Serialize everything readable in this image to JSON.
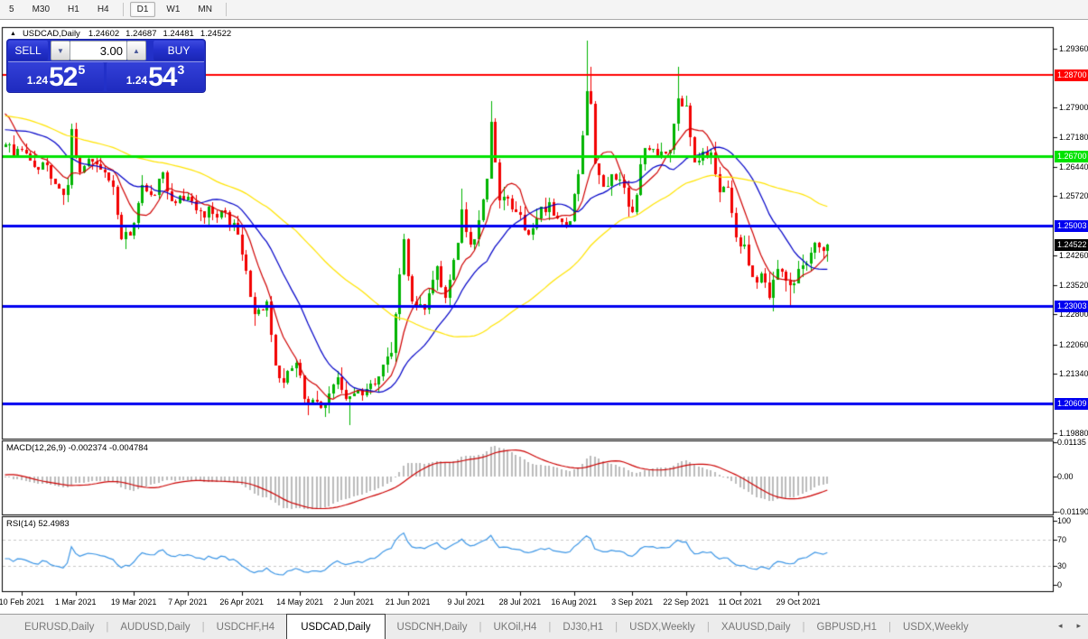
{
  "toolbar": {
    "timeframes": [
      "5",
      "M30",
      "H1",
      "H4",
      "D1",
      "W1",
      "MN"
    ],
    "active": "D1",
    "separators_after": [
      "H4",
      "MN"
    ]
  },
  "header": {
    "collapse_arrow": "▲",
    "title": "USDCAD,Daily",
    "open": "1.24602",
    "high": "1.24687",
    "low": "1.24481",
    "close": "1.24522"
  },
  "trade_panel": {
    "sell_label": "SELL",
    "buy_label": "BUY",
    "volume": "3.00",
    "down_arrow": "▼",
    "up_arrow": "▲",
    "sell_price_prefix": "1.24",
    "sell_price_big": "52",
    "sell_price_sup": "5",
    "buy_price_prefix": "1.24",
    "buy_price_big": "54",
    "buy_price_sup": "3"
  },
  "chart_data": {
    "type": "candlestick",
    "symbol": "USDCAD",
    "timeframe": "Daily",
    "ylim": [
      1.1974,
      1.29888
    ],
    "y_ticks": [
      1.2936,
      1.279,
      1.2718,
      1.2644,
      1.2572,
      1.2426,
      1.2352,
      1.228,
      1.2206,
      1.2134,
      1.1988
    ],
    "levels": [
      {
        "price": 1.287,
        "label": "1.28700",
        "color": "#ff0000",
        "thickness": 2
      },
      {
        "price": 1.267,
        "label": "1.26700",
        "color": "#00e300",
        "thickness": 3
      },
      {
        "price": 1.25003,
        "label": "1.25003",
        "color": "#0000f0",
        "thickness": 3
      },
      {
        "price": 1.23003,
        "label": "1.23003",
        "color": "#0000f0",
        "thickness": 3
      },
      {
        "price": 1.20609,
        "label": "1.20609",
        "color": "#0000f0",
        "thickness": 3
      }
    ],
    "current_price": {
      "value": 1.24522,
      "label": "1.24522",
      "bg": "#000000"
    },
    "x_ticks": [
      {
        "i": 4,
        "label": "10 Feb 2021"
      },
      {
        "i": 17,
        "label": "1 Mar 2021"
      },
      {
        "i": 31,
        "label": "19 Mar 2021"
      },
      {
        "i": 44,
        "label": "7 Apr 2021"
      },
      {
        "i": 57,
        "label": "26 Apr 2021"
      },
      {
        "i": 71,
        "label": "14 May 2021"
      },
      {
        "i": 84,
        "label": "2 Jun 2021"
      },
      {
        "i": 97,
        "label": "21 Jun 2021"
      },
      {
        "i": 111,
        "label": "9 Jul 2021"
      },
      {
        "i": 124,
        "label": "28 Jul 2021"
      },
      {
        "i": 137,
        "label": "16 Aug 2021"
      },
      {
        "i": 151,
        "label": "3 Sep 2021"
      },
      {
        "i": 164,
        "label": "22 Sep 2021"
      },
      {
        "i": 177,
        "label": "11 Oct 2021"
      },
      {
        "i": 191,
        "label": "29 Oct 2021"
      }
    ],
    "candle_count": 199,
    "close_anchors": [
      [
        0,
        1.27
      ],
      [
        2,
        1.2672
      ],
      [
        4,
        1.2687
      ],
      [
        7,
        1.2643
      ],
      [
        9,
        1.2655
      ],
      [
        11,
        1.2615
      ],
      [
        14,
        1.2575
      ],
      [
        15,
        1.26
      ],
      [
        16,
        1.2737
      ],
      [
        18,
        1.263
      ],
      [
        21,
        1.2658
      ],
      [
        24,
        1.263
      ],
      [
        26,
        1.2595
      ],
      [
        28,
        1.2465
      ],
      [
        30,
        1.2475
      ],
      [
        31,
        1.2505
      ],
      [
        33,
        1.26
      ],
      [
        36,
        1.2575
      ],
      [
        38,
        1.263
      ],
      [
        40,
        1.256
      ],
      [
        43,
        1.2562
      ],
      [
        45,
        1.256
      ],
      [
        47,
        1.2535
      ],
      [
        50,
        1.2528
      ],
      [
        52,
        1.2538
      ],
      [
        54,
        1.25
      ],
      [
        56,
        1.2478
      ],
      [
        58,
        1.2388
      ],
      [
        60,
        1.2282
      ],
      [
        61,
        1.2292
      ],
      [
        63,
        1.2312
      ],
      [
        65,
        1.2155
      ],
      [
        67,
        1.2112
      ],
      [
        70,
        1.2162
      ],
      [
        72,
        1.2072
      ],
      [
        75,
        1.2066
      ],
      [
        77,
        1.206
      ],
      [
        80,
        1.2126
      ],
      [
        82,
        1.2072
      ],
      [
        83,
        1.2078
      ],
      [
        84,
        1.2086
      ],
      [
        86,
        1.208
      ],
      [
        89,
        1.2108
      ],
      [
        91,
        1.2156
      ],
      [
        93,
        1.2186
      ],
      [
        94,
        1.2282
      ],
      [
        96,
        1.2465
      ],
      [
        98,
        1.2312
      ],
      [
        101,
        1.2292
      ],
      [
        104,
        1.24
      ],
      [
        106,
        1.2322
      ],
      [
        109,
        1.2456
      ],
      [
        110,
        1.254
      ],
      [
        112,
        1.2452
      ],
      [
        114,
        1.2512
      ],
      [
        116,
        1.2615
      ],
      [
        117,
        1.2755
      ],
      [
        119,
        1.2562
      ],
      [
        121,
        1.2566
      ],
      [
        124,
        1.2526
      ],
      [
        126,
        1.2476
      ],
      [
        129,
        1.2546
      ],
      [
        131,
        1.2556
      ],
      [
        133,
        1.2516
      ],
      [
        136,
        1.251
      ],
      [
        138,
        1.2626
      ],
      [
        140,
        1.283
      ],
      [
        141,
        1.28
      ],
      [
        142,
        1.2652
      ],
      [
        144,
        1.2596
      ],
      [
        146,
        1.2626
      ],
      [
        148,
        1.2612
      ],
      [
        150,
        1.2546
      ],
      [
        151,
        1.2532
      ],
      [
        154,
        1.269
      ],
      [
        156,
        1.2688
      ],
      [
        158,
        1.2682
      ],
      [
        160,
        1.2686
      ],
      [
        162,
        1.2812
      ],
      [
        164,
        1.2795
      ],
      [
        166,
        1.2656
      ],
      [
        168,
        1.2682
      ],
      [
        170,
        1.268
      ],
      [
        172,
        1.2582
      ],
      [
        174,
        1.2592
      ],
      [
        176,
        1.247
      ],
      [
        178,
        1.2452
      ],
      [
        180,
        1.2372
      ],
      [
        182,
        1.2382
      ],
      [
        184,
        1.2322
      ],
      [
        185,
        1.2366
      ],
      [
        187,
        1.2386
      ],
      [
        189,
        1.2352
      ],
      [
        191,
        1.2392
      ],
      [
        192,
        1.2402
      ],
      [
        194,
        1.2432
      ],
      [
        195,
        1.2456
      ],
      [
        196,
        1.2446
      ],
      [
        197,
        1.2436
      ],
      [
        198,
        1.2452
      ]
    ],
    "pre_anchors": [
      [
        -55,
        1.273
      ],
      [
        -45,
        1.287
      ],
      [
        -35,
        1.28
      ],
      [
        -25,
        1.2735
      ],
      [
        -15,
        1.269
      ],
      [
        -8,
        1.274
      ],
      [
        -5,
        1.285
      ],
      [
        -3,
        1.279
      ],
      [
        -1,
        1.2695
      ]
    ],
    "wick_overrides": [
      {
        "i": 16,
        "h": 1.275
      },
      {
        "i": 60,
        "l": 1.2252
      },
      {
        "i": 77,
        "l": 1.2028
      },
      {
        "i": 83,
        "l": 1.2007
      },
      {
        "i": 96,
        "h": 1.248
      },
      {
        "i": 110,
        "h": 1.259
      },
      {
        "i": 117,
        "h": 1.2807
      },
      {
        "i": 140,
        "h": 1.2955
      },
      {
        "i": 141,
        "h": 1.289
      },
      {
        "i": 162,
        "h": 1.289
      },
      {
        "i": 163,
        "h": 1.282
      },
      {
        "i": 185,
        "l": 1.2288
      },
      {
        "i": 189,
        "l": 1.2302
      }
    ],
    "up_color": "#00b400",
    "down_color": "#f20000",
    "moving_averages": [
      {
        "period": 8,
        "color": "#d00000"
      },
      {
        "period": 20,
        "color": "#0000c8"
      },
      {
        "period": 55,
        "color": "#ffe400"
      }
    ],
    "noise_seed": 11
  },
  "macd": {
    "label": "MACD(12,26,9) -0.002374 -0.004784",
    "params": [
      12,
      26,
      9
    ],
    "main_value": "-0.002374",
    "signal_value": "-0.004784",
    "axis": [
      {
        "v": 0.01135,
        "label": "0.01135"
      },
      {
        "v": 0,
        "label": "0.00"
      },
      {
        "v": -0.0119,
        "label": "-0.01190"
      }
    ],
    "ylim": [
      -0.0119,
      0.01135
    ],
    "hist_color": "#bbbbbb",
    "signal_color": "#cc0000"
  },
  "rsi": {
    "label": "RSI(14) 52.4983",
    "period": 14,
    "value": "52.4983",
    "axis": [
      {
        "v": 100,
        "label": "100"
      },
      {
        "v": 70,
        "label": "70"
      },
      {
        "v": 30,
        "label": "30"
      },
      {
        "v": 0,
        "label": "0"
      }
    ],
    "level_lines": [
      70,
      30
    ],
    "line_color": "#3c96e6",
    "level_color": "#c8c8c8"
  },
  "tabs": {
    "items": [
      "EURUSD,Daily",
      "AUDUSD,Daily",
      "USDCHF,H4",
      "USDCAD,Daily",
      "USDCNH,Daily",
      "UKOil,H4",
      "DJ30,H1",
      "USDX,Weekly",
      "XAUUSD,Daily",
      "GBPUSD,H1",
      "USDX,Weekly"
    ],
    "active": "USDCAD,Daily",
    "separator": "|",
    "scroll_left": "◂",
    "scroll_right": "▸"
  }
}
